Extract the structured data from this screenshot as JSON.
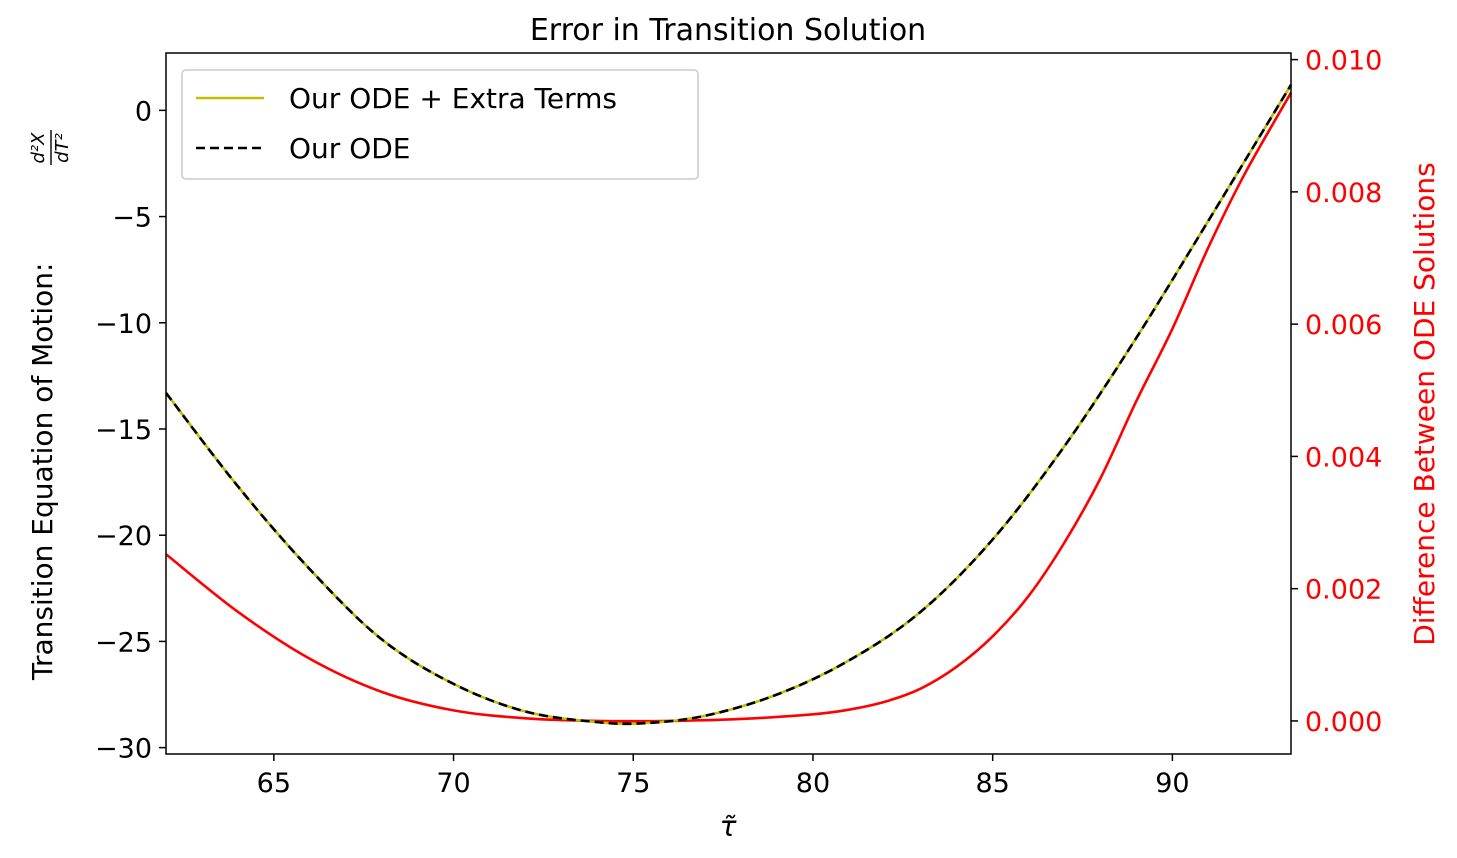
{
  "chart_data": {
    "type": "line",
    "title": "Error in Transition Solution",
    "xlabel": "τ̃",
    "ylabel_left_text": "Transition Equation of Motion: ",
    "ylabel_left_frac_num": "d²X",
    "ylabel_left_frac_den": "dT²",
    "ylabel_right": "Difference Between ODE Solutions",
    "xlim": [
      62,
      93.3
    ],
    "ylim_left": [
      -30.3,
      2.7
    ],
    "ylim_right": [
      -0.0005,
      0.0101
    ],
    "x_ticks": [
      65,
      70,
      75,
      80,
      85,
      90
    ],
    "x_tick_labels": [
      "65",
      "70",
      "75",
      "80",
      "85",
      "90"
    ],
    "y_left_ticks": [
      0,
      -5,
      -10,
      -15,
      -20,
      -25,
      -30
    ],
    "y_left_tick_labels": [
      "0",
      "−5",
      "−10",
      "−15",
      "−20",
      "−25",
      "−30"
    ],
    "y_right_ticks": [
      0.0,
      0.002,
      0.004,
      0.006,
      0.008,
      0.01
    ],
    "y_right_tick_labels": [
      "0.000",
      "0.002",
      "0.004",
      "0.006",
      "0.008",
      "0.010"
    ],
    "legend_position": "upper-left",
    "colors": {
      "extra_terms": "#bfbf00",
      "ode": "#000000",
      "difference": "#ff0000"
    },
    "series": [
      {
        "name": "Our ODE + Extra Terms",
        "axis": "left",
        "style": "solid",
        "x": [
          62,
          64,
          66,
          68,
          70,
          72,
          74,
          75.3,
          77,
          79,
          81,
          83,
          85,
          87,
          89,
          91,
          93.3
        ],
        "y": [
          -13.3,
          -17.7,
          -21.6,
          -24.9,
          -27.0,
          -28.3,
          -28.8,
          -28.85,
          -28.5,
          -27.5,
          -25.9,
          -23.6,
          -20.2,
          -15.8,
          -10.7,
          -5.2,
          1.2
        ]
      },
      {
        "name": "Our ODE",
        "axis": "left",
        "style": "dashed",
        "x": [
          62,
          64,
          66,
          68,
          70,
          72,
          74,
          75.3,
          77,
          79,
          81,
          83,
          85,
          87,
          89,
          91,
          93.3
        ],
        "y": [
          -13.3,
          -17.7,
          -21.6,
          -24.9,
          -27.0,
          -28.3,
          -28.8,
          -28.85,
          -28.5,
          -27.5,
          -25.9,
          -23.6,
          -20.2,
          -15.8,
          -10.7,
          -5.2,
          1.2
        ]
      },
      {
        "axis": "right",
        "style": "solid",
        "x": [
          62,
          64,
          66,
          68,
          70,
          72,
          74,
          76,
          78,
          80,
          81,
          82,
          83,
          84,
          85,
          86,
          87,
          88,
          89,
          90,
          91,
          92,
          93.3
        ],
        "y": [
          0.00252,
          0.00165,
          0.00094,
          0.00044,
          0.00016,
          4e-05,
          0.0,
          0.0,
          3e-05,
          0.0001,
          0.00017,
          0.00029,
          0.00049,
          0.00082,
          0.00128,
          0.00189,
          0.0027,
          0.00367,
          0.00484,
          0.00593,
          0.00716,
          0.00826,
          0.0095
        ]
      }
    ]
  }
}
